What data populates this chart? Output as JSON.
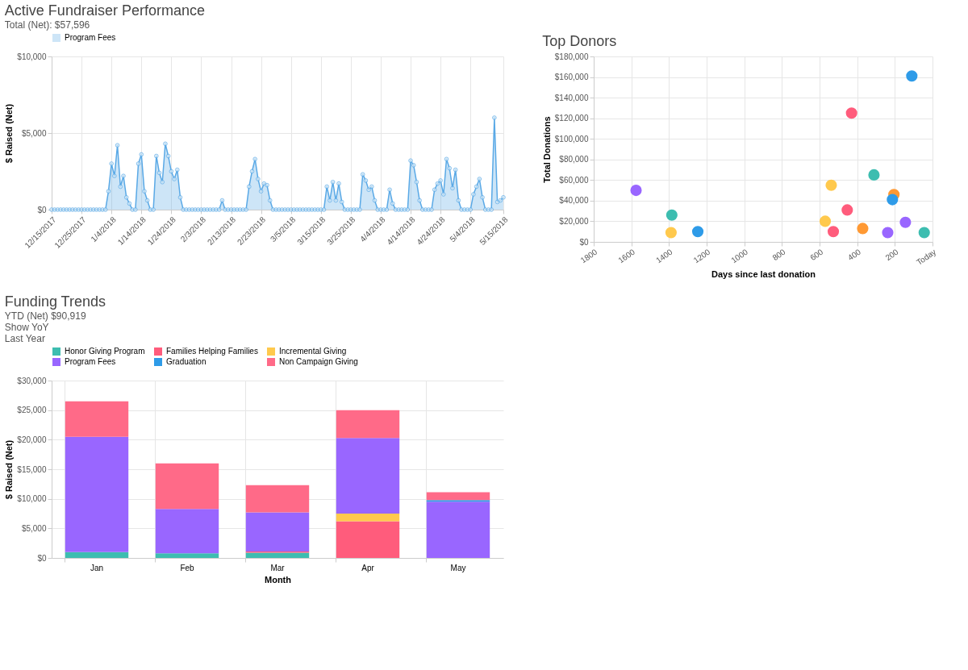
{
  "chart_data": [
    {
      "type": "area",
      "title": "Active Fundraiser Performance",
      "subtitle": "Total (Net): $57,596",
      "ylabel": "$ Raised (Net)",
      "legend": "top",
      "grid": true,
      "marker": "circle",
      "line_style": "solid",
      "x": [
        "2017-12-15",
        "2017-12-16",
        "2017-12-17",
        "2017-12-18",
        "2017-12-19",
        "2017-12-20",
        "2017-12-21",
        "2017-12-22",
        "2017-12-23",
        "2017-12-24",
        "2017-12-25",
        "2017-12-26",
        "2017-12-27",
        "2017-12-28",
        "2017-12-29",
        "2017-12-30",
        "2017-12-31",
        "2018-01-01",
        "2018-01-02",
        "2018-01-03",
        "2018-01-04",
        "2018-01-05",
        "2018-01-06",
        "2018-01-07",
        "2018-01-08",
        "2018-01-09",
        "2018-01-10",
        "2018-01-11",
        "2018-01-12",
        "2018-01-13",
        "2018-01-14",
        "2018-01-15",
        "2018-01-16",
        "2018-01-17",
        "2018-01-18",
        "2018-01-19",
        "2018-01-20",
        "2018-01-21",
        "2018-01-22",
        "2018-01-23",
        "2018-01-24",
        "2018-01-25",
        "2018-01-26",
        "2018-01-27",
        "2018-01-28",
        "2018-01-29",
        "2018-01-30",
        "2018-01-31",
        "2018-02-01",
        "2018-02-02",
        "2018-02-03",
        "2018-02-04",
        "2018-02-05",
        "2018-02-06",
        "2018-02-07",
        "2018-02-08",
        "2018-02-09",
        "2018-02-10",
        "2018-02-11",
        "2018-02-12",
        "2018-02-13",
        "2018-02-14",
        "2018-02-15",
        "2018-02-16",
        "2018-02-17",
        "2018-02-18",
        "2018-02-19",
        "2018-02-20",
        "2018-02-21",
        "2018-02-22",
        "2018-02-23",
        "2018-02-24",
        "2018-02-25",
        "2018-02-26",
        "2018-02-27",
        "2018-02-28",
        "2018-03-01",
        "2018-03-02",
        "2018-03-03",
        "2018-03-04",
        "2018-03-05",
        "2018-03-06",
        "2018-03-07",
        "2018-03-08",
        "2018-03-09",
        "2018-03-10",
        "2018-03-11",
        "2018-03-12",
        "2018-03-13",
        "2018-03-14",
        "2018-03-15",
        "2018-03-16",
        "2018-03-17",
        "2018-03-18",
        "2018-03-19",
        "2018-03-20",
        "2018-03-21",
        "2018-03-22",
        "2018-03-23",
        "2018-03-24",
        "2018-03-25",
        "2018-03-26",
        "2018-03-27",
        "2018-03-28",
        "2018-03-29",
        "2018-03-30",
        "2018-03-31",
        "2018-04-01",
        "2018-04-02",
        "2018-04-03",
        "2018-04-04",
        "2018-04-05",
        "2018-04-06",
        "2018-04-07",
        "2018-04-08",
        "2018-04-09",
        "2018-04-10",
        "2018-04-11",
        "2018-04-12",
        "2018-04-13",
        "2018-04-14",
        "2018-04-15",
        "2018-04-16",
        "2018-04-17",
        "2018-04-18",
        "2018-04-19",
        "2018-04-20",
        "2018-04-21",
        "2018-04-22",
        "2018-04-23",
        "2018-04-24",
        "2018-04-25",
        "2018-04-26",
        "2018-04-27",
        "2018-04-28",
        "2018-04-29",
        "2018-04-30",
        "2018-05-01",
        "2018-05-02",
        "2018-05-03",
        "2018-05-04",
        "2018-05-05",
        "2018-05-06",
        "2018-05-07",
        "2018-05-08",
        "2018-05-09",
        "2018-05-10",
        "2018-05-11",
        "2018-05-12",
        "2018-05-13",
        "2018-05-14",
        "2018-05-15"
      ],
      "series": [
        {
          "name": "Program Fees",
          "color": "#5aa9e6",
          "values": [
            0,
            0,
            0,
            0,
            0,
            0,
            0,
            0,
            0,
            0,
            0,
            0,
            0,
            0,
            0,
            0,
            0,
            0,
            0,
            1200,
            3000,
            2200,
            4200,
            1500,
            2200,
            800,
            400,
            0,
            0,
            3000,
            3600,
            1200,
            600,
            0,
            0,
            3500,
            2400,
            1800,
            4300,
            3500,
            2500,
            2000,
            2600,
            800,
            0,
            0,
            0,
            0,
            0,
            0,
            0,
            0,
            0,
            0,
            0,
            0,
            0,
            600,
            0,
            0,
            0,
            0,
            0,
            0,
            0,
            0,
            1500,
            2500,
            3300,
            2000,
            1200,
            1700,
            1600,
            600,
            0,
            0,
            0,
            0,
            0,
            0,
            0,
            0,
            0,
            0,
            0,
            0,
            0,
            0,
            0,
            0,
            0,
            0,
            1500,
            600,
            1800,
            600,
            1700,
            500,
            0,
            0,
            0,
            0,
            0,
            0,
            2300,
            1900,
            1300,
            1500,
            600,
            0,
            0,
            0,
            0,
            1300,
            400,
            0,
            0,
            0,
            0,
            0,
            3200,
            2900,
            1800,
            600,
            0,
            0,
            0,
            0,
            1300,
            1700,
            1900,
            1000,
            3300,
            2700,
            1400,
            2600,
            600,
            0,
            0,
            0,
            0,
            1000,
            1500,
            2000,
            800,
            0,
            0,
            0,
            6000,
            500,
            600,
            800
          ]
        }
      ],
      "xlim": [
        "2017-12-15",
        "2018-05-15"
      ],
      "xticks": [
        {
          "value": "2017-12-15",
          "label": "12/15/2017"
        },
        {
          "value": "2017-12-25",
          "label": "12/25/2017"
        },
        {
          "value": "2018-01-04",
          "label": "1/4/2018"
        },
        {
          "value": "2018-01-14",
          "label": "1/14/2018"
        },
        {
          "value": "2018-01-24",
          "label": "1/24/2018"
        },
        {
          "value": "2018-02-03",
          "label": "2/3/2018"
        },
        {
          "value": "2018-02-13",
          "label": "2/13/2018"
        },
        {
          "value": "2018-02-23",
          "label": "2/23/2018"
        },
        {
          "value": "2018-03-05",
          "label": "3/5/2018"
        },
        {
          "value": "2018-03-15",
          "label": "3/15/2018"
        },
        {
          "value": "2018-03-25",
          "label": "3/25/2018"
        },
        {
          "value": "2018-04-04",
          "label": "4/4/2018"
        },
        {
          "value": "2018-04-14",
          "label": "4/14/2018"
        },
        {
          "value": "2018-04-24",
          "label": "4/24/2018"
        },
        {
          "value": "2018-05-04",
          "label": "5/4/2018"
        },
        {
          "value": "2018-05-15",
          "label": "5/15/2018"
        }
      ],
      "ylim": [
        0,
        10000
      ],
      "yticks": [
        {
          "value": 0,
          "label": "$0"
        },
        {
          "value": 5000,
          "label": "$5,000"
        },
        {
          "value": 10000,
          "label": "$10,000"
        }
      ]
    },
    {
      "type": "scatter",
      "title": "Top Donors",
      "xlabel": "Days since last donation",
      "ylabel": "Total Donations",
      "grid": true,
      "marker": "circle",
      "x": [
        1575,
        1385,
        1389,
        1247,
        110,
        430,
        311,
        205,
        213,
        144,
        44,
        538,
        453,
        371,
        238,
        570,
        527
      ],
      "values": [
        50000,
        26000,
        9000,
        10000,
        161000,
        125000,
        65000,
        46000,
        41000,
        19000,
        9000,
        55000,
        31000,
        13000,
        9000,
        20000,
        10000
      ],
      "colors": [
        "#9966ff",
        "#3dbdb0",
        "#ffc94d",
        "#2e9be8",
        "#2e9be8",
        "#ff5c7c",
        "#3dbdb0",
        "#ff9933",
        "#2e9be8",
        "#9966ff",
        "#3dbdb0",
        "#ffc94d",
        "#ff5c7c",
        "#ff9933",
        "#9966ff",
        "#ffc94d",
        "#ff5c7c"
      ],
      "xlim": [
        1800,
        0
      ],
      "xticks": [
        1800,
        1600,
        1400,
        1200,
        1000,
        800,
        600,
        400,
        200,
        {
          "value": 0,
          "label": "Today"
        }
      ],
      "ylim": [
        0,
        180000
      ],
      "yticks": [
        {
          "value": 0,
          "label": "$0"
        },
        {
          "value": 20000,
          "label": "$20,000"
        },
        {
          "value": 40000,
          "label": "$40,000"
        },
        {
          "value": 60000,
          "label": "$60,000"
        },
        {
          "value": 80000,
          "label": "$80,000"
        },
        {
          "value": 100000,
          "label": "$100,000"
        },
        {
          "value": 120000,
          "label": "$120,000"
        },
        {
          "value": 140000,
          "label": "$140,000"
        },
        {
          "value": 160000,
          "label": "$160,000"
        },
        {
          "value": 180000,
          "label": "$180,000"
        }
      ]
    },
    {
      "type": "bar",
      "title": "Funding Trends",
      "subtitle": "YTD (Net) $90,919",
      "xlabel": "Month",
      "ylabel": "$ Raised (Net)",
      "stacked": true,
      "legend": "top",
      "grid": true,
      "annotations": [
        "Show YoY",
        "Last Year"
      ],
      "categories": [
        "Jan",
        "Feb",
        "Mar",
        "Apr",
        "May"
      ],
      "series": [
        {
          "name": "Honor Giving Program",
          "color": "#3dbdb0",
          "values": [
            1000,
            800,
            900,
            0,
            0
          ]
        },
        {
          "name": "Families Helping Families",
          "color": "#ff5c7c",
          "values": [
            0,
            0,
            200,
            6200,
            0
          ]
        },
        {
          "name": "Incremental Giving",
          "color": "#ffc94d",
          "values": [
            0,
            0,
            0,
            1300,
            0
          ]
        },
        {
          "name": "Program Fees",
          "color": "#9966ff",
          "values": [
            19500,
            7500,
            6600,
            12800,
            9500
          ]
        },
        {
          "name": "Graduation",
          "color": "#2e9be8",
          "values": [
            0,
            0,
            0,
            0,
            300
          ]
        },
        {
          "name": "Non Campaign Giving",
          "color": "#ff6a88",
          "values": [
            6000,
            7700,
            4600,
            4700,
            1300
          ]
        }
      ],
      "ylim": [
        0,
        30000
      ],
      "yticks": [
        {
          "value": 0,
          "label": "$0"
        },
        {
          "value": 5000,
          "label": "$5,000"
        },
        {
          "value": 10000,
          "label": "$10,000"
        },
        {
          "value": 15000,
          "label": "$15,000"
        },
        {
          "value": 20000,
          "label": "$20,000"
        },
        {
          "value": 25000,
          "label": "$25,000"
        },
        {
          "value": 30000,
          "label": "$30,000"
        }
      ]
    }
  ]
}
